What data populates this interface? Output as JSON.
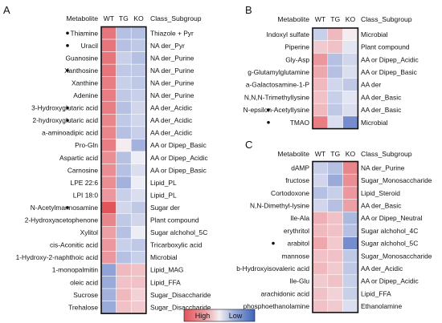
{
  "legend": {
    "high_label": "High",
    "low_label": "Low"
  },
  "chart_data": [
    {
      "type": "heatmap",
      "panel": "A",
      "header": {
        "metabolite": "Metabolite",
        "class": "Class_Subgroup"
      },
      "columns": [
        "WT",
        "TG",
        "KO"
      ],
      "rows": [
        {
          "name": "Thiamine",
          "class": "Thiazole + Pyr",
          "marked": true,
          "values": [
            0.75,
            -0.35,
            -0.35
          ]
        },
        {
          "name": "Uracil",
          "class": "NA der_Pyr",
          "marked": true,
          "values": [
            0.75,
            -0.35,
            -0.3
          ]
        },
        {
          "name": "Guanosine",
          "class": "NA der_Purine",
          "marked": false,
          "values": [
            0.75,
            -0.25,
            -0.35
          ]
        },
        {
          "name": "Xanthosine",
          "class": "NA der_Purine",
          "marked": true,
          "values": [
            0.75,
            -0.3,
            -0.3
          ]
        },
        {
          "name": "Xanthine",
          "class": "NA der_Purine",
          "marked": false,
          "values": [
            0.7,
            -0.25,
            -0.3
          ]
        },
        {
          "name": "Adenine",
          "class": "NA der_Purine",
          "marked": false,
          "values": [
            0.7,
            -0.3,
            -0.25
          ]
        },
        {
          "name": "3-Hydroxyglutaric acid",
          "class": "AA der_Acidic",
          "marked": true,
          "values": [
            0.7,
            -0.35,
            -0.2
          ]
        },
        {
          "name": "2-hydroxyglutaric acid",
          "class": "AA der_Acidic",
          "marked": true,
          "values": [
            0.65,
            -0.3,
            -0.2
          ]
        },
        {
          "name": "a-aminoadipic acid",
          "class": "AA der_Acidic",
          "marked": false,
          "values": [
            0.65,
            -0.35,
            -0.25
          ]
        },
        {
          "name": "Pro-Gln",
          "class": "AA or Dipep_Basic",
          "marked": false,
          "values": [
            0.7,
            0.05,
            -0.45
          ]
        },
        {
          "name": "Aspartic acid",
          "class": "AA or Dipep_Acidic",
          "marked": false,
          "values": [
            0.6,
            -0.35,
            -0.05
          ]
        },
        {
          "name": "Carnosine",
          "class": "AA or Dipep_Basic",
          "marked": false,
          "values": [
            0.6,
            -0.35,
            -0.15
          ]
        },
        {
          "name": "LPE 22:6",
          "class": "Lipid_PL",
          "marked": false,
          "values": [
            0.6,
            -0.45,
            -0.05
          ]
        },
        {
          "name": "LPI 18:0",
          "class": "Lipid_PL",
          "marked": false,
          "values": [
            0.55,
            -0.25,
            -0.15
          ]
        },
        {
          "name": "N-Acetylmannosamine",
          "class": "Sugar der",
          "marked": true,
          "values": [
            0.95,
            -0.2,
            -0.3
          ]
        },
        {
          "name": "2-Hydroxyacetophenone",
          "class": "Plant compound",
          "marked": false,
          "values": [
            0.65,
            -0.3,
            -0.2
          ]
        },
        {
          "name": "Xylitol",
          "class": "Sugar alchohol_5C",
          "marked": false,
          "values": [
            0.5,
            -0.35,
            -0.05
          ]
        },
        {
          "name": "cis-Aconitic acid",
          "class": "Tricarboxylic acid",
          "marked": false,
          "values": [
            0.55,
            -0.25,
            -0.3
          ]
        },
        {
          "name": "1-Hydroxy-2-naphthoic acid",
          "class": "Microbial",
          "marked": false,
          "values": [
            0.55,
            -0.35,
            -0.25
          ]
        },
        {
          "name": "1-monopalmitin",
          "class": "Lipid_MAG",
          "marked": false,
          "values": [
            -0.55,
            0.35,
            0.3
          ]
        },
        {
          "name": "oleic acid",
          "class": "Lipid_FFA",
          "marked": false,
          "values": [
            -0.5,
            0.3,
            0.3
          ]
        },
        {
          "name": "Sucrose",
          "class": "Sugar_Disaccharide",
          "marked": false,
          "values": [
            -0.45,
            0.35,
            0.2
          ]
        },
        {
          "name": "Trehalose",
          "class": "Sugar_Disaccharide",
          "marked": false,
          "values": [
            -0.5,
            0.3,
            0.25
          ]
        }
      ]
    },
    {
      "type": "heatmap",
      "panel": "B",
      "header": {
        "metabolite": "Metabolite",
        "class": "Class_Subgroup"
      },
      "columns": [
        "WT",
        "TG",
        "KO"
      ],
      "rows": [
        {
          "name": "Indoxyl sulfate",
          "class": "Microbial",
          "marked": false,
          "values": [
            -0.25,
            0.35,
            0.05
          ]
        },
        {
          "name": "Piperine",
          "class": "Plant compound",
          "marked": false,
          "values": [
            0.25,
            0.3,
            -0.1
          ]
        },
        {
          "name": "Gly-Asp",
          "class": "AA or Dipep_Acidic",
          "marked": false,
          "values": [
            0.55,
            -0.35,
            -0.2
          ]
        },
        {
          "name": "g-Glutamylglutamine",
          "class": "AA or Dipep_Basic",
          "marked": false,
          "values": [
            0.45,
            -0.35,
            -0.15
          ]
        },
        {
          "name": "a-Galactosamine-1-P",
          "class": "AA der",
          "marked": false,
          "values": [
            0.35,
            -0.2,
            -0.3
          ]
        },
        {
          "name": "N,N,N-Trimethyllysine",
          "class": "AA der_Basic",
          "marked": false,
          "values": [
            0.3,
            -0.25,
            -0.1
          ]
        },
        {
          "name": "N-epsilon-Acetyllysine",
          "class": "AA der_Basic",
          "marked": true,
          "values": [
            0.35,
            -0.3,
            -0.15
          ]
        },
        {
          "name": "TMAO",
          "class": "Microbial",
          "marked": true,
          "values": [
            0.7,
            -0.15,
            -0.7
          ]
        }
      ]
    },
    {
      "type": "heatmap",
      "panel": "C",
      "header": {
        "metabolite": "Metabolite",
        "class": "Class_Subgroup"
      },
      "columns": [
        "WT",
        "TG",
        "KO"
      ],
      "rows": [
        {
          "name": "dAMP",
          "class": "NA der_Purine",
          "marked": false,
          "values": [
            -0.25,
            -0.35,
            0.65
          ]
        },
        {
          "name": "fructose",
          "class": "Sugar_Monosaccharide",
          "marked": false,
          "values": [
            -0.2,
            -0.5,
            0.6
          ]
        },
        {
          "name": "Cortodoxone",
          "class": "Lipid_Steroid",
          "marked": false,
          "values": [
            -0.35,
            -0.25,
            0.55
          ]
        },
        {
          "name": "N,N-Dimethyl-lysine",
          "class": "AA der_Basic",
          "marked": false,
          "values": [
            -0.2,
            -0.35,
            0.5
          ]
        },
        {
          "name": "Ile-Ala",
          "class": "AA or Dipep_Neutral",
          "marked": false,
          "values": [
            0.4,
            0.3,
            -0.4
          ]
        },
        {
          "name": "erythritol",
          "class": "Sugar alchohol_4C",
          "marked": false,
          "values": [
            0.35,
            0.3,
            -0.35
          ]
        },
        {
          "name": "arabitol",
          "class": "Sugar alchohol_5C",
          "marked": true,
          "values": [
            0.45,
            0.25,
            -0.7
          ]
        },
        {
          "name": "mannose",
          "class": "Sugar_Monosaccharide",
          "marked": false,
          "values": [
            0.3,
            0.3,
            -0.3
          ]
        },
        {
          "name": "b-Hydroxyisovaleric acid",
          "class": "AA der_Acidic",
          "marked": false,
          "values": [
            0.35,
            0.25,
            -0.3
          ]
        },
        {
          "name": "Ile-Glu",
          "class": "AA or Dipep_Acidic",
          "marked": false,
          "values": [
            0.25,
            0.3,
            -0.25
          ]
        },
        {
          "name": "arachidonic acid",
          "class": "Lipid_FFA",
          "marked": false,
          "values": [
            0.3,
            0.2,
            -0.25
          ]
        },
        {
          "name": "phosphoethanolamine",
          "class": "Ethanolamine",
          "marked": false,
          "values": [
            0.3,
            0.25,
            -0.15
          ]
        }
      ]
    }
  ]
}
